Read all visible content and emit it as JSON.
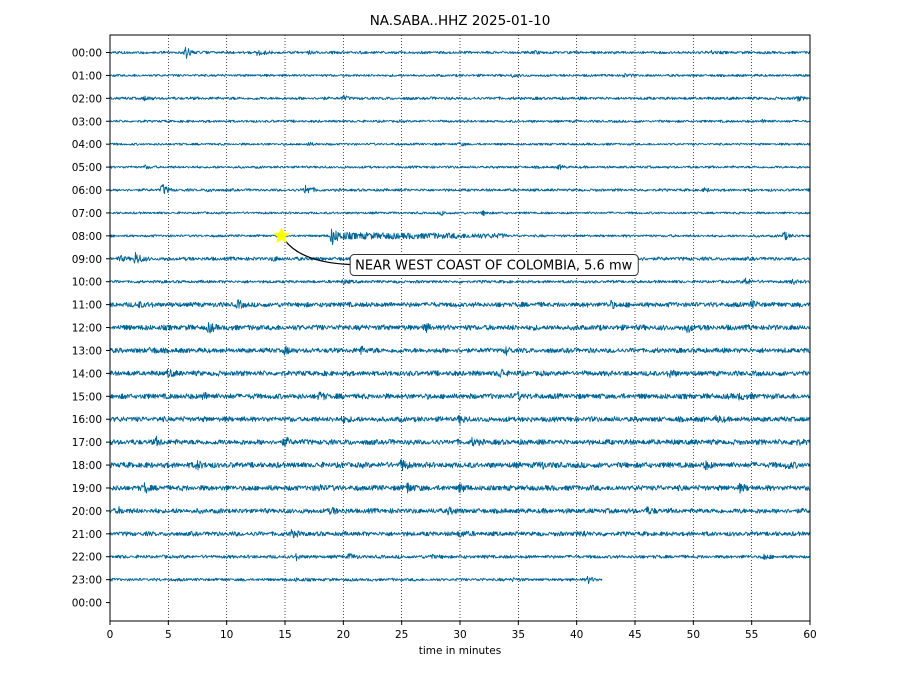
{
  "chart_data": {
    "type": "line",
    "title": "NA.SABA..HHZ 2025-01-10",
    "xlabel": "time in minutes",
    "ylabel": "",
    "xlim": [
      0,
      60
    ],
    "x_ticks": [
      0,
      5,
      10,
      15,
      20,
      25,
      30,
      35,
      40,
      45,
      50,
      55,
      60
    ],
    "y_tick_labels": [
      "00:00",
      "01:00",
      "02:00",
      "03:00",
      "04:00",
      "05:00",
      "06:00",
      "07:00",
      "08:00",
      "09:00",
      "10:00",
      "11:00",
      "12:00",
      "13:00",
      "14:00",
      "15:00",
      "16:00",
      "17:00",
      "18:00",
      "19:00",
      "20:00",
      "21:00",
      "22:00",
      "23:00",
      "00:00"
    ],
    "grid": "vertical dotted at x ticks",
    "trace_color": "#006699",
    "trace_rows": [
      {
        "hour": "00:00",
        "end_minute": 60,
        "noise": 1.2,
        "bursts": [
          {
            "t": 6.5,
            "amp": 5.5
          },
          {
            "t": 12.7,
            "amp": 5.0
          },
          {
            "t": 17.0,
            "amp": 1.5
          },
          {
            "t": 36.5,
            "amp": 1.5
          },
          {
            "t": 51.5,
            "amp": 1.5
          }
        ]
      },
      {
        "hour": "01:00",
        "end_minute": 60,
        "noise": 1.1,
        "bursts": [
          {
            "t": 34.5,
            "amp": 1.5
          },
          {
            "t": 44.0,
            "amp": 1.8
          }
        ]
      },
      {
        "hour": "02:00",
        "end_minute": 60,
        "noise": 1.3,
        "bursts": [
          {
            "t": 3.0,
            "amp": 1.8
          },
          {
            "t": 20.0,
            "amp": 2.0
          },
          {
            "t": 59.0,
            "amp": 1.8
          }
        ]
      },
      {
        "hour": "03:00",
        "end_minute": 60,
        "noise": 1.1,
        "bursts": [
          {
            "t": 56.0,
            "amp": 1.6
          }
        ]
      },
      {
        "hour": "04:00",
        "end_minute": 60,
        "noise": 1.0,
        "bursts": [
          {
            "t": 17.0,
            "amp": 1.5
          },
          {
            "t": 30.0,
            "amp": 1.5
          }
        ]
      },
      {
        "hour": "05:00",
        "end_minute": 60,
        "noise": 1.1,
        "bursts": [
          {
            "t": 3.0,
            "amp": 1.5
          },
          {
            "t": 38.5,
            "amp": 1.8
          }
        ]
      },
      {
        "hour": "06:00",
        "end_minute": 60,
        "noise": 1.2,
        "bursts": [
          {
            "t": 4.5,
            "amp": 6.0
          },
          {
            "t": 16.8,
            "amp": 6.0
          },
          {
            "t": 8.5,
            "amp": 1.8
          },
          {
            "t": 51.0,
            "amp": 1.5
          }
        ]
      },
      {
        "hour": "07:00",
        "end_minute": 60,
        "noise": 1.0,
        "bursts": [
          {
            "t": 28.5,
            "amp": 2.0
          },
          {
            "t": 32.0,
            "amp": 2.0
          }
        ]
      },
      {
        "hour": "08:00",
        "end_minute": 60,
        "noise": 1.1,
        "bursts": [
          {
            "t": 19.0,
            "amp": 8.0
          },
          {
            "t": 57.8,
            "amp": 4.5
          }
        ],
        "coda": {
          "start": 19.0,
          "end": 34.0,
          "amp": 2.5
        }
      },
      {
        "hour": "09:00",
        "end_minute": 60,
        "noise": 1.6,
        "bursts": [
          {
            "t": 2.2,
            "amp": 7.0
          },
          {
            "t": 0.8,
            "amp": 2.5
          },
          {
            "t": 14.0,
            "amp": 1.5
          }
        ]
      },
      {
        "hour": "10:00",
        "end_minute": 60,
        "noise": 1.3,
        "bursts": [
          {
            "t": 20.0,
            "amp": 2.0
          },
          {
            "t": 54.5,
            "amp": 3.5
          },
          {
            "t": 58.5,
            "amp": 2.5
          }
        ]
      },
      {
        "hour": "11:00",
        "end_minute": 60,
        "noise": 2.2,
        "bursts": [
          {
            "t": 2.5,
            "amp": 2.5
          },
          {
            "t": 11.0,
            "amp": 3.0
          },
          {
            "t": 43.0,
            "amp": 3.0
          },
          {
            "t": 55.0,
            "amp": 2.5
          }
        ]
      },
      {
        "hour": "12:00",
        "end_minute": 60,
        "noise": 2.4,
        "bursts": [
          {
            "t": 8.5,
            "amp": 4.0
          },
          {
            "t": 27.0,
            "amp": 3.0
          },
          {
            "t": 49.5,
            "amp": 3.5
          }
        ]
      },
      {
        "hour": "13:00",
        "end_minute": 60,
        "noise": 2.2,
        "bursts": [
          {
            "t": 3.5,
            "amp": 3.0
          },
          {
            "t": 15.0,
            "amp": 3.0
          },
          {
            "t": 21.5,
            "amp": 3.5
          },
          {
            "t": 34.0,
            "amp": 2.5
          }
        ]
      },
      {
        "hour": "14:00",
        "end_minute": 60,
        "noise": 2.3,
        "bursts": [
          {
            "t": 5.0,
            "amp": 3.0
          },
          {
            "t": 33.5,
            "amp": 4.0
          },
          {
            "t": 48.0,
            "amp": 3.0
          }
        ]
      },
      {
        "hour": "15:00",
        "end_minute": 60,
        "noise": 2.4,
        "bursts": [
          {
            "t": 8.0,
            "amp": 3.5
          },
          {
            "t": 18.0,
            "amp": 3.0
          },
          {
            "t": 35.0,
            "amp": 3.0
          },
          {
            "t": 54.0,
            "amp": 3.0
          }
        ]
      },
      {
        "hour": "16:00",
        "end_minute": 60,
        "noise": 2.3,
        "bursts": [
          {
            "t": 20.0,
            "amp": 3.0
          },
          {
            "t": 30.0,
            "amp": 3.0
          },
          {
            "t": 52.0,
            "amp": 2.5
          }
        ]
      },
      {
        "hour": "17:00",
        "end_minute": 60,
        "noise": 2.4,
        "bursts": [
          {
            "t": 4.0,
            "amp": 3.0
          },
          {
            "t": 15.0,
            "amp": 3.5
          },
          {
            "t": 31.0,
            "amp": 3.0
          },
          {
            "t": 58.5,
            "amp": 3.0
          }
        ]
      },
      {
        "hour": "18:00",
        "end_minute": 60,
        "noise": 2.5,
        "bursts": [
          {
            "t": 7.5,
            "amp": 4.0
          },
          {
            "t": 25.0,
            "amp": 5.0
          },
          {
            "t": 37.0,
            "amp": 3.0
          },
          {
            "t": 51.0,
            "amp": 3.0
          },
          {
            "t": 58.0,
            "amp": 3.0
          }
        ]
      },
      {
        "hour": "19:00",
        "end_minute": 60,
        "noise": 2.4,
        "bursts": [
          {
            "t": 3.0,
            "amp": 4.0
          },
          {
            "t": 18.0,
            "amp": 3.0
          },
          {
            "t": 25.5,
            "amp": 5.0
          },
          {
            "t": 30.0,
            "amp": 3.0
          },
          {
            "t": 54.0,
            "amp": 3.0
          }
        ]
      },
      {
        "hour": "20:00",
        "end_minute": 60,
        "noise": 2.2,
        "bursts": [
          {
            "t": 0.8,
            "amp": 2.5
          },
          {
            "t": 19.0,
            "amp": 3.0
          },
          {
            "t": 29.0,
            "amp": 3.0
          },
          {
            "t": 46.0,
            "amp": 3.0
          }
        ]
      },
      {
        "hour": "21:00",
        "end_minute": 60,
        "noise": 2.0,
        "bursts": [
          {
            "t": 15.5,
            "amp": 4.0
          },
          {
            "t": 30.0,
            "amp": 3.5
          },
          {
            "t": 40.5,
            "amp": 2.5
          }
        ]
      },
      {
        "hour": "22:00",
        "end_minute": 60,
        "noise": 1.5,
        "bursts": [
          {
            "t": 16.0,
            "amp": 2.5
          },
          {
            "t": 20.5,
            "amp": 3.0
          },
          {
            "t": 27.5,
            "amp": 2.0
          },
          {
            "t": 56.0,
            "amp": 2.5
          }
        ]
      },
      {
        "hour": "23:00",
        "end_minute": 42.2,
        "noise": 1.3,
        "bursts": [
          {
            "t": 16.0,
            "amp": 1.5
          },
          {
            "t": 34.5,
            "amp": 1.5
          },
          {
            "t": 41.0,
            "amp": 3.0
          }
        ]
      }
    ],
    "event": {
      "marker": "star",
      "marker_color": "#ffff00",
      "minute": 14.7,
      "row_hour": "08:00",
      "label": "NEAR WEST COAST OF COLOMBIA, 5.6 mw",
      "label_minute": 20.5,
      "label_row_offset": 1.25
    }
  }
}
